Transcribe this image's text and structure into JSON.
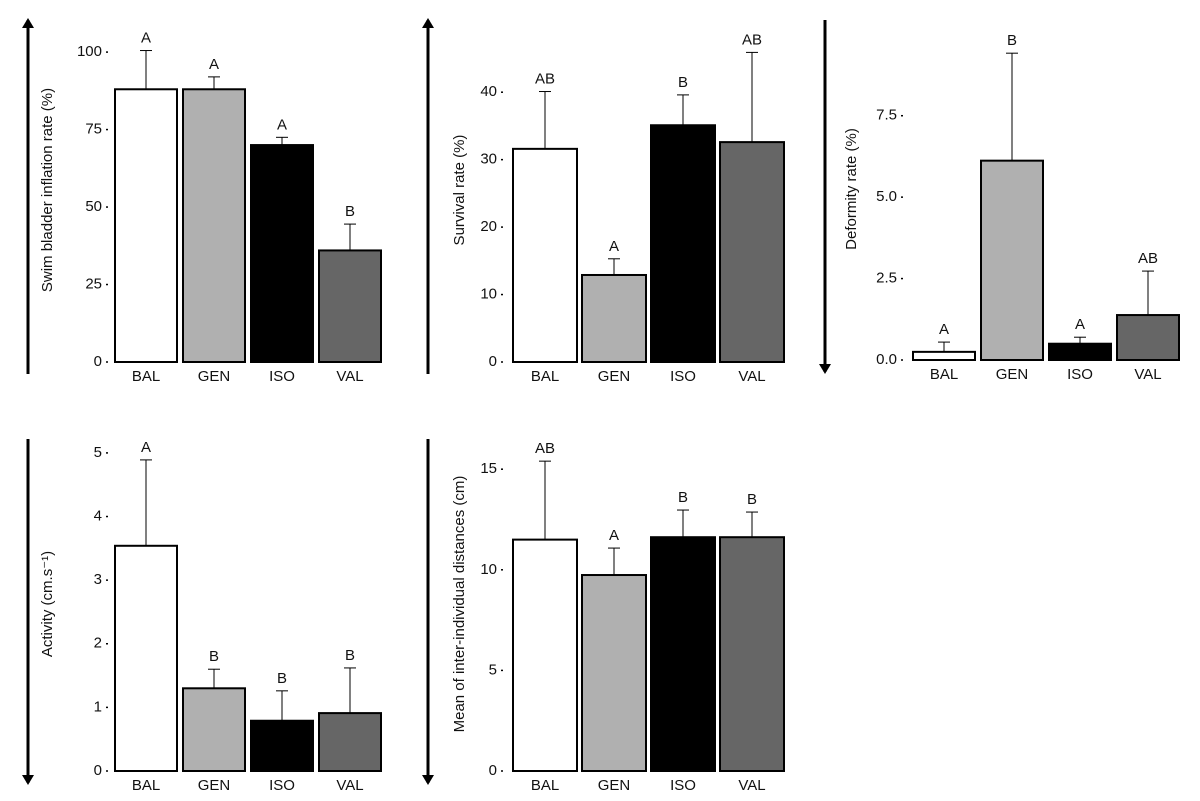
{
  "chart_data": [
    {
      "type": "bar",
      "y_label": "Swim bladder inflation rate (%)",
      "categories": [
        "BAL",
        "GEN",
        "ISO",
        "VAL"
      ],
      "colors": [
        "#ffffff",
        "#b0b0b0",
        "#000000",
        "#666666"
      ],
      "values": [
        88,
        88,
        70,
        36
      ],
      "errors": [
        12.5,
        4,
        2.5,
        8.5
      ],
      "annotations": [
        "A",
        "A",
        "A",
        "B"
      ],
      "ylim": [
        0,
        111
      ],
      "yticks": [
        0,
        25,
        50,
        75,
        100
      ]
    },
    {
      "type": "bar",
      "y_label": "Survival rate (%)",
      "categories": [
        "BAL",
        "GEN",
        "ISO",
        "VAL"
      ],
      "colors": [
        "#ffffff",
        "#b0b0b0",
        "#000000",
        "#666666"
      ],
      "values": [
        31.6,
        12.9,
        35.1,
        32.6
      ],
      "errors": [
        8.5,
        2.4,
        4.5,
        13.3
      ],
      "annotations": [
        "AB",
        "A",
        "B",
        "AB"
      ],
      "ylim": [
        0,
        51
      ],
      "yticks": [
        0,
        10,
        20,
        30,
        40
      ]
    },
    {
      "type": "bar",
      "y_label": "Deformity rate (%)",
      "categories": [
        "BAL",
        "GEN",
        "ISO",
        "VAL"
      ],
      "colors": [
        "#ffffff",
        "#b0b0b0",
        "#000000",
        "#666666"
      ],
      "values": [
        0.25,
        6.12,
        0.5,
        1.38
      ],
      "errors": [
        0.3,
        3.3,
        0.2,
        1.35
      ],
      "annotations": [
        "A",
        "B",
        "A",
        "AB"
      ],
      "ylim": [
        0,
        10.5
      ],
      "yticks": [
        {
          "value": 0,
          "label": "0.0"
        },
        {
          "value": 2.5,
          "label": "2.5"
        },
        {
          "value": 5,
          "label": "5.0"
        },
        {
          "value": 7.5,
          "label": "7.5"
        }
      ]
    },
    {
      "type": "bar",
      "y_label": "Activity (cm.s⁻¹)",
      "categories": [
        "BAL",
        "GEN",
        "ISO",
        "VAL"
      ],
      "colors": [
        "#ffffff",
        "#b0b0b0",
        "#000000",
        "#666666"
      ],
      "values": [
        3.54,
        1.3,
        0.79,
        0.91
      ],
      "errors": [
        1.35,
        0.3,
        0.47,
        0.71
      ],
      "annotations": [
        "A",
        "B",
        "B",
        "B"
      ],
      "ylim": [
        0,
        5.25
      ],
      "yticks": [
        0,
        1,
        2,
        3,
        4,
        5
      ]
    },
    {
      "type": "bar",
      "y_label": "Mean of inter-individual distances (cm)",
      "categories": [
        "BAL",
        "GEN",
        "ISO",
        "VAL"
      ],
      "colors": [
        "#ffffff",
        "#b0b0b0",
        "#000000",
        "#666666"
      ],
      "values": [
        11.5,
        9.74,
        11.62,
        11.62
      ],
      "errors": [
        3.9,
        1.34,
        1.35,
        1.25
      ],
      "annotations": [
        "AB",
        "A",
        "B",
        "B"
      ],
      "ylim": [
        0,
        16.6
      ],
      "yticks": [
        0,
        5,
        10,
        15
      ]
    }
  ]
}
